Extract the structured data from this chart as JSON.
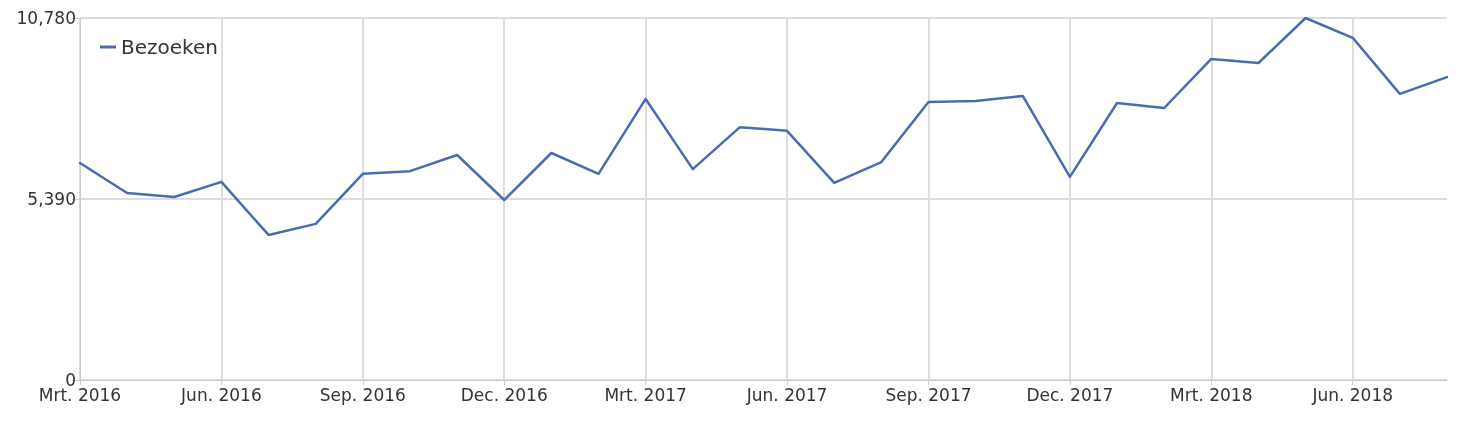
{
  "chart_data": {
    "type": "line",
    "categories": [
      "Mrt. 2016",
      null,
      null,
      "Jun. 2016",
      null,
      null,
      "Sep. 2016",
      null,
      null,
      "Dec. 2016",
      null,
      null,
      "Mrt. 2017",
      null,
      null,
      "Jun. 2017",
      null,
      null,
      "Sep. 2017",
      null,
      null,
      "Dec. 2017",
      null,
      null,
      "Mrt. 2018",
      null,
      null,
      "Jun. 2018",
      null,
      null
    ],
    "series": [
      {
        "name": "Bezoeken",
        "color": "#4a6bb0",
        "values": [
          6460,
          5570,
          5450,
          5900,
          4320,
          4650,
          6140,
          6220,
          6700,
          5360,
          6760,
          6140,
          8370,
          6280,
          7530,
          7420,
          5870,
          6490,
          8280,
          8310,
          8460,
          6050,
          8250,
          8100,
          9560,
          9440,
          10780,
          10190,
          8520,
          9020
        ]
      }
    ],
    "ylim": [
      0,
      10780
    ],
    "yticks": [
      0,
      {
        "value": 5390,
        "label": "5,390"
      },
      {
        "value": 10780,
        "label": "10,780"
      }
    ],
    "grid": true,
    "legend": "top left",
    "marker": "none",
    "line_style": "solid"
  }
}
